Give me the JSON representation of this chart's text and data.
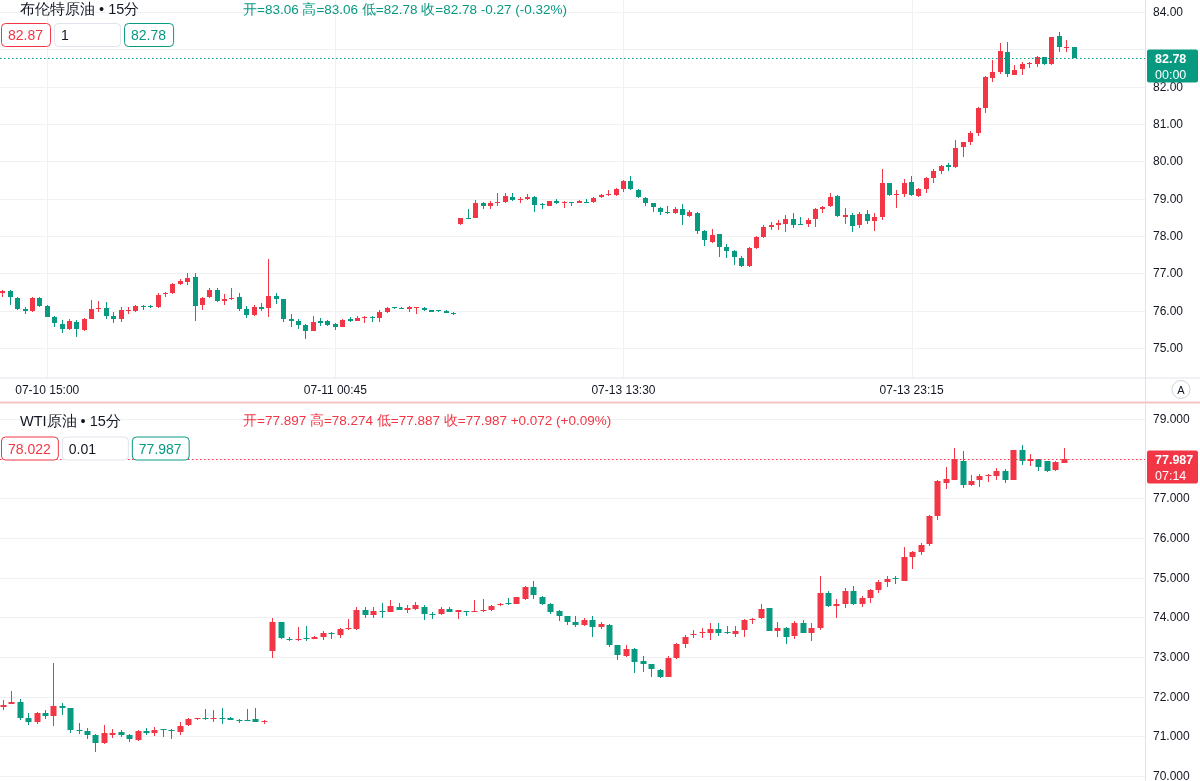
{
  "chart_data": [
    {
      "type": "candlestick",
      "title": "布伦特原油 • 15分",
      "subtitle": "开=83.06 高=83.06 低=82.78 收=82.78 -0.27 (-0.32%)",
      "categories": [
        null,
        null,
        null,
        null,
        null,
        null,
        "07-10 15:00",
        null,
        null,
        null,
        null,
        null,
        null,
        null,
        null,
        null,
        null,
        null,
        null,
        null,
        null,
        null,
        null,
        null,
        null,
        null,
        null,
        null,
        null,
        null,
        null,
        null,
        null,
        null,
        null,
        null,
        null,
        null,
        null,
        null,
        null,
        null,
        null,
        null,
        null,
        "07-11 00:45",
        null,
        null,
        null,
        null,
        null,
        null,
        null,
        null,
        null,
        null,
        null,
        null,
        null,
        null,
        null,
        null,
        null,
        null,
        null,
        null,
        null,
        null,
        null,
        null,
        null,
        null,
        null,
        null,
        null,
        null,
        null,
        null,
        null,
        null,
        null,
        null,
        null,
        null,
        "07-13 13:30",
        null,
        null,
        null,
        null,
        null,
        null,
        null,
        null,
        null,
        null,
        null,
        null,
        null,
        null,
        null,
        null,
        null,
        null,
        null,
        null,
        null,
        null,
        null,
        null,
        null,
        null,
        null,
        null,
        null,
        null,
        null,
        null,
        null,
        null,
        null,
        null,
        null,
        null,
        "07-13 23:15",
        null,
        null,
        null,
        null,
        null,
        null,
        null,
        null,
        null,
        null,
        null,
        null,
        null,
        null,
        null,
        null,
        null,
        null,
        null,
        null,
        null,
        null,
        null,
        null,
        null,
        null,
        null,
        null,
        null,
        null,
        null
      ],
      "ohlc": [
        [
          76.46,
          76.55,
          76.36,
          76.53
        ],
        [
          76.53,
          76.55,
          76.15,
          76.36
        ],
        [
          76.35,
          76.37,
          76.02,
          76.04
        ],
        [
          76.04,
          76.11,
          75.91,
          75.99
        ],
        [
          75.99,
          76.36,
          75.97,
          76.35
        ],
        [
          76.35,
          76.36,
          76.11,
          76.13
        ],
        [
          76.13,
          76.15,
          75.82,
          75.84
        ],
        [
          75.84,
          75.86,
          75.55,
          75.66
        ],
        [
          75.64,
          75.75,
          75.39,
          75.5
        ],
        [
          75.5,
          75.77,
          75.48,
          75.71
        ],
        [
          75.7,
          75.75,
          75.3,
          75.5
        ],
        [
          75.48,
          75.81,
          75.46,
          75.79
        ],
        [
          75.79,
          76.28,
          75.77,
          76.04
        ],
        [
          76.04,
          76.26,
          75.97,
          76.08
        ],
        [
          76.08,
          76.23,
          75.79,
          75.86
        ],
        [
          75.86,
          75.97,
          75.68,
          75.79
        ],
        [
          75.79,
          76.11,
          75.69,
          76.02
        ],
        [
          76.01,
          76.11,
          75.95,
          76.03
        ],
        [
          76,
          76.15,
          75.96,
          76.12
        ],
        [
          76.12,
          76.15,
          76.05,
          76.1
        ],
        [
          76.12,
          76.14,
          76.06,
          76.1
        ],
        [
          76.09,
          76.46,
          76.07,
          76.42
        ],
        [
          76.44,
          76.51,
          76.39,
          76.48
        ],
        [
          76.46,
          76.75,
          76.44,
          76.71
        ],
        [
          76.71,
          76.84,
          76.7,
          76.79
        ],
        [
          76.78,
          77,
          76.73,
          76.88
        ],
        [
          76.89,
          77.02,
          75.73,
          76.12
        ],
        [
          76.14,
          76.37,
          76.03,
          76.35
        ],
        [
          76.36,
          76.6,
          76.33,
          76.55
        ],
        [
          76.55,
          76.6,
          76.24,
          76.27
        ],
        [
          76.27,
          76.44,
          76.14,
          76.3
        ],
        [
          76.3,
          76.6,
          76.28,
          76.35
        ],
        [
          76.37,
          76.46,
          76,
          76.04
        ],
        [
          76.04,
          76.13,
          75.82,
          75.88
        ],
        [
          75.88,
          76.15,
          75.86,
          76.11
        ],
        [
          76.11,
          76.2,
          76,
          76.04
        ],
        [
          76.06,
          77.38,
          75.82,
          76.39
        ],
        [
          76.39,
          76.46,
          76.18,
          76.32
        ],
        [
          76.3,
          76.32,
          75.71,
          75.78
        ],
        [
          75.78,
          75.91,
          75.55,
          75.73
        ],
        [
          75.72,
          75.79,
          75.5,
          75.62
        ],
        [
          75.62,
          75.64,
          75.24,
          75.46
        ],
        [
          75.46,
          75.86,
          75.45,
          75.7
        ],
        [
          75.71,
          75.8,
          75.62,
          75.68
        ],
        [
          75.71,
          75.75,
          75.59,
          75.62
        ],
        [
          75.63,
          75.66,
          75.48,
          75.55
        ],
        [
          75.57,
          75.78,
          75.55,
          75.75
        ],
        [
          75.77,
          75.84,
          75.7,
          75.73
        ],
        [
          75.73,
          75.86,
          75.71,
          75.81
        ],
        [
          75.8,
          75.86,
          75.68,
          75.84
        ],
        [
          75.84,
          75.87,
          75.7,
          75.8
        ],
        [
          75.81,
          76.02,
          75.7,
          75.97
        ],
        [
          75.97,
          76.11,
          75.95,
          76.08
        ],
        [
          76.09,
          76.11,
          76.05,
          76.06
        ],
        [
          76.08,
          76.1,
          76.04,
          76.05
        ],
        [
          76.05,
          76.12,
          75.99,
          76.09
        ],
        [
          76.06,
          76.11,
          75.91,
          76.09
        ],
        [
          76.08,
          76.11,
          76,
          76.02
        ],
        [
          76.01,
          76.01,
          75.96,
          75.97
        ],
        [
          76.01,
          76.02,
          75.96,
          75.98
        ],
        [
          75.99,
          76.03,
          75.93,
          75.95
        ],
        [
          75.93,
          75.96,
          75.89,
          75.9
        ],
        [
          78.32,
          78.49,
          78.3,
          78.47
        ],
        [
          78.49,
          78.71,
          78.47,
          78.47
        ],
        [
          78.49,
          78.96,
          78.47,
          78.88
        ],
        [
          78.88,
          78.92,
          78.74,
          78.79
        ],
        [
          78.79,
          78.95,
          78.72,
          78.88
        ],
        [
          78.88,
          79.14,
          78.79,
          78.91
        ],
        [
          78.9,
          79.16,
          78.88,
          79.07
        ],
        [
          79.05,
          79.14,
          78.95,
          78.96
        ],
        [
          78.96,
          79.05,
          78.88,
          78.98
        ],
        [
          78.98,
          79.12,
          78.96,
          79.05
        ],
        [
          79.05,
          79.07,
          78.65,
          78.83
        ],
        [
          78.85,
          78.89,
          78.71,
          78.83
        ],
        [
          78.81,
          78.95,
          78.79,
          78.94
        ],
        [
          78.94,
          78.99,
          78.85,
          78.88
        ],
        [
          78.88,
          78.94,
          78.74,
          78.92
        ],
        [
          78.92,
          78.92,
          78.8,
          78.9
        ],
        [
          78.89,
          78.96,
          78.88,
          78.93
        ],
        [
          78.92,
          78.98,
          78.88,
          78.89
        ],
        [
          78.92,
          79.05,
          78.89,
          79.03
        ],
        [
          79.05,
          79.12,
          79.03,
          79.1
        ],
        [
          79.1,
          79.23,
          79.07,
          79.13
        ],
        [
          79.1,
          79.28,
          79.08,
          79.26
        ],
        [
          79.25,
          79.5,
          79.19,
          79.48
        ],
        [
          79.48,
          79.61,
          79.23,
          79.26
        ],
        [
          79.23,
          79.25,
          79.01,
          79.04
        ],
        [
          79.03,
          79.04,
          78.83,
          78.88
        ],
        [
          78.88,
          78.89,
          78.65,
          78.77
        ],
        [
          78.76,
          78.77,
          78.56,
          78.64
        ],
        [
          78.64,
          78.79,
          78.59,
          78.61
        ],
        [
          78.61,
          78.77,
          78.59,
          78.72
        ],
        [
          78.71,
          78.85,
          78.3,
          78.55
        ],
        [
          78.54,
          78.7,
          78.52,
          78.65
        ],
        [
          78.61,
          78.63,
          78.09,
          78.14
        ],
        [
          78.14,
          78.16,
          77.74,
          77.88
        ],
        [
          77.85,
          78.18,
          77.82,
          78.03
        ],
        [
          78.05,
          78.05,
          77.43,
          77.71
        ],
        [
          77.71,
          77.79,
          77.4,
          77.61
        ],
        [
          77.61,
          77.63,
          77.22,
          77.43
        ],
        [
          77.42,
          77.46,
          77.18,
          77.2
        ],
        [
          77.2,
          77.71,
          77.18,
          77.67
        ],
        [
          77.67,
          78.01,
          77.64,
          77.98
        ],
        [
          77.98,
          78.3,
          77.94,
          78.25
        ],
        [
          78.25,
          78.37,
          78.18,
          78.3
        ],
        [
          78.29,
          78.43,
          78.16,
          78.34
        ],
        [
          78.32,
          78.55,
          78.12,
          78.45
        ],
        [
          78.45,
          78.61,
          78.25,
          78.3
        ],
        [
          78.32,
          78.5,
          78.29,
          78.3
        ],
        [
          78.32,
          78.47,
          78.25,
          78.43
        ],
        [
          78.46,
          78.74,
          78.23,
          78.72
        ],
        [
          78.72,
          78.79,
          78.61,
          78.77
        ],
        [
          78.79,
          79.16,
          78.77,
          79.05
        ],
        [
          79.08,
          79.1,
          78.52,
          78.54
        ],
        [
          78.52,
          78.74,
          78.32,
          78.56
        ],
        [
          78.56,
          78.61,
          78.12,
          78.27
        ],
        [
          78.3,
          78.63,
          78.23,
          78.59
        ],
        [
          78.59,
          78.7,
          78.34,
          78.39
        ],
        [
          78.39,
          78.61,
          78.14,
          78.52
        ],
        [
          78.52,
          79.8,
          78.45,
          79.41
        ],
        [
          79.41,
          79.43,
          79.07,
          79.1
        ],
        [
          79.09,
          79.23,
          78.74,
          79.13
        ],
        [
          79.13,
          79.52,
          79.04,
          79.43
        ],
        [
          79.44,
          79.61,
          79.08,
          79.1
        ],
        [
          79.08,
          79.29,
          79.04,
          79.26
        ],
        [
          79.27,
          79.59,
          79.16,
          79.55
        ],
        [
          79.56,
          79.79,
          79.43,
          79.73
        ],
        [
          79.75,
          79.91,
          79.68,
          79.88
        ],
        [
          79.89,
          79.95,
          79.75,
          79.86
        ],
        [
          79.86,
          80.57,
          79.83,
          80.35
        ],
        [
          80.37,
          80.53,
          80.11,
          80.51
        ],
        [
          80.53,
          80.8,
          80.44,
          80.75
        ],
        [
          80.77,
          81.45,
          80.72,
          81.44
        ],
        [
          81.44,
          82.29,
          81.29,
          82.27
        ],
        [
          82.22,
          82.71,
          82.13,
          82.38
        ],
        [
          82.38,
          83.18,
          82.34,
          82.96
        ],
        [
          82.94,
          83.19,
          82.27,
          82.33
        ],
        [
          82.31,
          82.58,
          82.3,
          82.45
        ],
        [
          82.47,
          82.66,
          82.3,
          82.61
        ],
        [
          82.6,
          82.66,
          82.49,
          82.64
        ],
        [
          82.6,
          82.82,
          82.54,
          82.79
        ],
        [
          82.79,
          82.8,
          82.57,
          82.61
        ],
        [
          82.61,
          83.34,
          82.58,
          83.32
        ],
        [
          83.36,
          83.47,
          82.94,
          83.05
        ],
        [
          83.03,
          83.25,
          82.93,
          83.05
        ],
        [
          83.06,
          83.06,
          82.78,
          82.78
        ],
        null,
        null,
        null,
        null,
        null,
        null,
        null,
        null,
        null
      ],
      "colors": [
        "#f23645",
        "#089981",
        "#089981",
        "#089981",
        "#f23645",
        "#089981",
        "#089981",
        "#089981",
        "#089981",
        "#f23645",
        "#089981",
        "#f23645",
        "#f23645",
        "#f23645",
        "#089981",
        "#089981",
        "#f23645",
        "#f23645",
        "#f23645",
        "#089981",
        "#089981",
        "#f23645",
        "#f23645",
        "#f23645",
        "#f23645",
        "#f23645",
        "#089981",
        "#f23645",
        "#f23645",
        "#089981",
        "#f23645",
        "#f23645",
        "#089981",
        "#089981",
        "#f23645",
        "#089981",
        "#f23645",
        "#089981",
        "#089981",
        "#089981",
        "#089981",
        "#089981",
        "#f23645",
        "#089981",
        "#089981",
        "#089981",
        "#f23645",
        "#089981",
        "#f23645",
        "#f23645",
        "#089981",
        "#f23645",
        "#f23645",
        "#089981",
        "#089981",
        "#f23645",
        "#f23645",
        "#089981",
        "#089981",
        "#089981",
        "#089981",
        "#089981",
        "#f23645",
        "#089981",
        "#f23645",
        "#089981",
        "#f23645",
        "#f23645",
        "#f23645",
        "#089981",
        "#f23645",
        "#f23645",
        "#089981",
        "#089981",
        "#f23645",
        "#089981",
        "#f23645",
        "#089981",
        "#f23645",
        "#089981",
        "#f23645",
        "#f23645",
        "#f23645",
        "#f23645",
        "#f23645",
        "#089981",
        "#089981",
        "#089981",
        "#089981",
        "#089981",
        "#089981",
        "#f23645",
        "#089981",
        "#f23645",
        "#089981",
        "#089981",
        "#f23645",
        "#089981",
        "#089981",
        "#089981",
        "#089981",
        "#f23645",
        "#f23645",
        "#f23645",
        "#f23645",
        "#f23645",
        "#f23645",
        "#089981",
        "#089981",
        "#f23645",
        "#f23645",
        "#f23645",
        "#f23645",
        "#089981",
        "#f23645",
        "#089981",
        "#f23645",
        "#089981",
        "#f23645",
        "#f23645",
        "#089981",
        "#f23645",
        "#f23645",
        "#089981",
        "#f23645",
        "#f23645",
        "#f23645",
        "#f23645",
        "#089981",
        "#f23645",
        "#f23645",
        "#f23645",
        "#f23645",
        "#f23645",
        "#f23645",
        "#f23645",
        "#089981",
        "#f23645",
        "#f23645",
        "#f23645",
        "#f23645",
        "#089981",
        "#f23645",
        "#089981",
        "#f23645",
        "#089981",
        null,
        null,
        null,
        null,
        null,
        null,
        null,
        null,
        null
      ],
      "ylim": [
        74.21,
        84.32
      ],
      "yticks": [
        {
          "value": 75,
          "label": "75.00"
        },
        {
          "value": 76,
          "label": "76.00"
        },
        {
          "value": 77,
          "label": "77.00"
        },
        {
          "value": 78,
          "label": "78.00"
        },
        {
          "value": 79,
          "label": "79.00"
        },
        {
          "value": 80,
          "label": "80.00"
        },
        {
          "value": 81,
          "label": "81.00"
        },
        {
          "value": 82,
          "label": "82.00"
        },
        {
          "value": 83,
          "label": null
        },
        {
          "value": 84,
          "label": "84.00"
        }
      ],
      "ref_lines": [
        {
          "axis": "y",
          "value": 82.78,
          "label": "82.78",
          "color": "#089981",
          "line_style": "dotted"
        }
      ],
      "annotations": [
        "82.87",
        "1",
        "82.78",
        "00:00",
        "A"
      ],
      "grid": true
    },
    {
      "type": "candlestick",
      "title": "WTI原油 • 15分",
      "subtitle": "开=77.897 高=78.274 低=77.887 收=77.987 +0.072 (+0.09%)",
      "categories": [
        null,
        null,
        null,
        null,
        null,
        null,
        null,
        null,
        null,
        null,
        null,
        null,
        null,
        null,
        null,
        null,
        null,
        null,
        null,
        null,
        null,
        null,
        null,
        null,
        null,
        null,
        null,
        null,
        null,
        null,
        null,
        null,
        null,
        null,
        null,
        null,
        null,
        null,
        null,
        null,
        null,
        null,
        null,
        null,
        null,
        null,
        null,
        null,
        null,
        null,
        null,
        null,
        null,
        null,
        null,
        null,
        null,
        null,
        null,
        null,
        null,
        null,
        null,
        null,
        null,
        null,
        null,
        null,
        null,
        null,
        null,
        null,
        null,
        null,
        null,
        null,
        null,
        null,
        null,
        null,
        null,
        null,
        null,
        null,
        null,
        null,
        null,
        null,
        null,
        null,
        null,
        null,
        null,
        null,
        null,
        null,
        null,
        null,
        null,
        null,
        null,
        null,
        null,
        null,
        null,
        null,
        null,
        null,
        null,
        null,
        null,
        null,
        null,
        null,
        null,
        null,
        null,
        null,
        null,
        null,
        null,
        null,
        null,
        null,
        null,
        null,
        null,
        null,
        null,
        null,
        null,
        null,
        null,
        null,
        null,
        null
      ],
      "ohlc": [
        [
          71.73,
          71.92,
          71.66,
          71.79
        ],
        [
          71.82,
          72.13,
          71.81,
          71.86
        ],
        [
          71.86,
          71.93,
          71.41,
          71.45
        ],
        [
          71.45,
          71.58,
          71.29,
          71.37
        ],
        [
          71.37,
          71.6,
          71.33,
          71.58
        ],
        [
          71.58,
          71.65,
          71.45,
          71.5
        ],
        [
          71.51,
          72.84,
          71.26,
          71.77
        ],
        [
          71.77,
          71.83,
          71.54,
          71.72
        ],
        [
          71.7,
          71.72,
          71.08,
          71.16
        ],
        [
          71.16,
          71.33,
          71.08,
          71.14
        ],
        [
          71.12,
          71.2,
          70.92,
          71.03
        ],
        [
          71.02,
          71.05,
          70.61,
          70.82
        ],
        [
          70.82,
          71.29,
          70.81,
          71.08
        ],
        [
          71.04,
          71.18,
          70.98,
          71.08
        ],
        [
          71.1,
          71.16,
          70.99,
          71.02
        ],
        [
          71.03,
          71.05,
          70.85,
          70.93
        ],
        [
          70.91,
          71.16,
          70.88,
          71.14
        ],
        [
          71.14,
          71.2,
          71.05,
          71.09
        ],
        [
          71.09,
          71.23,
          71.02,
          71.16
        ],
        [
          71.17,
          71.18,
          70.98,
          71.15
        ],
        [
          71.16,
          71.18,
          70.94,
          71.14
        ],
        [
          71.11,
          71.37,
          71.06,
          71.26
        ],
        [
          71.27,
          71.45,
          71.25,
          71.44
        ],
        [
          71.43,
          71.46,
          71.41,
          71.45
        ],
        [
          71.45,
          71.69,
          71.41,
          71.43
        ],
        [
          71.43,
          71.65,
          71.36,
          71.47
        ],
        [
          71.46,
          71.71,
          71.3,
          71.44
        ],
        [
          71.46,
          71.48,
          71.4,
          71.41
        ],
        [
          71.41,
          71.43,
          71.35,
          71.39
        ],
        [
          71.41,
          71.69,
          71.38,
          71.39
        ],
        [
          71.43,
          71.72,
          71.35,
          71.36
        ],
        [
          71.35,
          71.41,
          71.31,
          71.38
        ],
        [
          73.15,
          73.99,
          72.98,
          73.87
        ],
        [
          73.87,
          73.89,
          73.45,
          73.47
        ],
        [
          73.46,
          73.51,
          73.39,
          73.42
        ],
        [
          73.42,
          73.75,
          73.4,
          73.45
        ],
        [
          73.47,
          73.77,
          73.41,
          73.45
        ],
        [
          73.46,
          73.53,
          73.45,
          73.51
        ],
        [
          73.5,
          73.64,
          73.45,
          73.6
        ],
        [
          73.6,
          73.62,
          73.45,
          73.57
        ],
        [
          73.54,
          73.72,
          73.49,
          73.71
        ],
        [
          73.7,
          73.95,
          73.68,
          73.72
        ],
        [
          73.71,
          74.25,
          73.68,
          74.19
        ],
        [
          74.17,
          74.25,
          73.99,
          74.06
        ],
        [
          74.06,
          74.25,
          73.99,
          74.16
        ],
        [
          74.16,
          74.35,
          73.99,
          74.12
        ],
        [
          74.14,
          74.44,
          74.13,
          74.29
        ],
        [
          74.27,
          74.35,
          74.17,
          74.19
        ],
        [
          74.19,
          74.3,
          74.1,
          74.23
        ],
        [
          74.21,
          74.38,
          74.19,
          74.3
        ],
        [
          74.25,
          74.31,
          73.93,
          74.08
        ],
        [
          74.08,
          74.14,
          73.96,
          74.06
        ],
        [
          74.08,
          74.25,
          74.06,
          74.21
        ],
        [
          74.2,
          74.25,
          74.13,
          74.14
        ],
        [
          74.14,
          74.19,
          73.96,
          74.17
        ],
        [
          74.16,
          74.16,
          74.02,
          74.14
        ],
        [
          74.13,
          74.44,
          74.13,
          74.16
        ],
        [
          74.16,
          74.46,
          74.14,
          74.19
        ],
        [
          74.18,
          74.31,
          74.16,
          74.29
        ],
        [
          74.31,
          74.36,
          74.29,
          74.34
        ],
        [
          74.35,
          74.48,
          74.31,
          74.33
        ],
        [
          74.34,
          74.52,
          74.33,
          74.5
        ],
        [
          74.46,
          74.79,
          74.44,
          74.77
        ],
        [
          74.77,
          74.92,
          74.45,
          74.55
        ],
        [
          74.52,
          74.54,
          74.31,
          74.34
        ],
        [
          74.33,
          74.35,
          74.1,
          74.14
        ],
        [
          74.16,
          74.19,
          73.91,
          74.02
        ],
        [
          74.02,
          74.04,
          73.81,
          73.89
        ],
        [
          73.89,
          74.02,
          73.77,
          73.81
        ],
        [
          73.81,
          73.96,
          73.79,
          73.92
        ],
        [
          73.92,
          74.04,
          73.51,
          73.75
        ],
        [
          73.75,
          73.89,
          73.71,
          73.82
        ],
        [
          73.81,
          73.82,
          73.26,
          73.29
        ],
        [
          73.29,
          73.3,
          72.92,
          73.05
        ],
        [
          73.03,
          73.29,
          73,
          73.2
        ],
        [
          73.2,
          73.22,
          72.59,
          72.88
        ],
        [
          72.9,
          73.01,
          72.63,
          72.82
        ],
        [
          72.82,
          72.83,
          72.5,
          72.7
        ],
        [
          72.67,
          72.7,
          72.48,
          72.5
        ],
        [
          72.5,
          73.01,
          72.49,
          72.97
        ],
        [
          72.97,
          73.34,
          72.95,
          73.32
        ],
        [
          73.33,
          73.54,
          73.22,
          73.51
        ],
        [
          73.56,
          73.68,
          73.47,
          73.57
        ],
        [
          73.59,
          73.72,
          73.47,
          73.64
        ],
        [
          73.61,
          73.85,
          73.43,
          73.7
        ],
        [
          73.7,
          73.86,
          73.56,
          73.61
        ],
        [
          73.62,
          73.78,
          73.58,
          73.59
        ],
        [
          73.58,
          73.78,
          73.51,
          73.66
        ],
        [
          73.68,
          73.96,
          73.51,
          73.93
        ],
        [
          73.92,
          73.97,
          73.83,
          73.96
        ],
        [
          73.97,
          74.33,
          73.96,
          74.21
        ],
        [
          74.23,
          74.23,
          73.66,
          73.66
        ],
        [
          73.65,
          73.89,
          73.5,
          73.73
        ],
        [
          73.72,
          73.75,
          73.33,
          73.51
        ],
        [
          73.53,
          73.89,
          73.45,
          73.85
        ],
        [
          73.85,
          73.93,
          73.6,
          73.61
        ],
        [
          73.61,
          73.85,
          73.39,
          73.74
        ],
        [
          73.74,
          75.03,
          73.7,
          74.62
        ],
        [
          74.62,
          74.65,
          74.27,
          74.29
        ],
        [
          74.29,
          74.45,
          73.97,
          74.33
        ],
        [
          74.33,
          74.73,
          74.24,
          74.65
        ],
        [
          74.65,
          74.79,
          74.31,
          74.34
        ],
        [
          74.34,
          74.52,
          74.29,
          74.48
        ],
        [
          74.48,
          74.71,
          74.35,
          74.69
        ],
        [
          74.69,
          74.92,
          74.62,
          74.88
        ],
        [
          74.9,
          75.03,
          74.77,
          74.96
        ],
        [
          75,
          75.04,
          74.83,
          74.97
        ],
        [
          74.92,
          75.76,
          74.91,
          75.51
        ],
        [
          75.53,
          75.66,
          75.21,
          75.64
        ],
        [
          75.64,
          75.87,
          75.56,
          75.82
        ],
        [
          75.84,
          76.57,
          75.8,
          76.56
        ],
        [
          76.56,
          77.46,
          76.44,
          77.44
        ],
        [
          77.38,
          77.8,
          77.23,
          77.48
        ],
        [
          77.46,
          78.28,
          77.45,
          77.98
        ],
        [
          77.94,
          78.19,
          77.29,
          77.34
        ],
        [
          77.34,
          77.59,
          77.32,
          77.44
        ],
        [
          77.46,
          77.61,
          77.28,
          77.55
        ],
        [
          77.55,
          77.61,
          77.42,
          77.58
        ],
        [
          77.56,
          77.76,
          77.46,
          77.7
        ],
        [
          77.7,
          77.73,
          77.4,
          77.45
        ],
        [
          77.45,
          78.22,
          77.45,
          78.22
        ],
        [
          78.22,
          78.35,
          77.84,
          77.95
        ],
        [
          77.95,
          78.12,
          77.82,
          77.98
        ],
        [
          77.98,
          77.98,
          77.7,
          77.8
        ],
        [
          77.95,
          77.95,
          77.67,
          77.7
        ],
        [
          77.71,
          77.93,
          77.69,
          77.92
        ],
        [
          77.897,
          78.274,
          77.887,
          77.987
        ],
        null,
        null,
        null,
        null,
        null,
        null,
        null,
        null,
        null
      ],
      "colors": [
        "#f23645",
        "#f23645",
        "#089981",
        "#089981",
        "#f23645",
        "#089981",
        "#f23645",
        "#089981",
        "#089981",
        "#089981",
        "#089981",
        "#089981",
        "#f23645",
        "#f23645",
        "#089981",
        "#089981",
        "#f23645",
        "#089981",
        "#f23645",
        "#089981",
        "#089981",
        "#f23645",
        "#f23645",
        "#f23645",
        "#089981",
        "#f23645",
        "#089981",
        "#089981",
        "#089981",
        "#089981",
        "#089981",
        "#f23645",
        "#f23645",
        "#089981",
        "#089981",
        "#f23645",
        "#089981",
        "#f23645",
        "#f23645",
        "#089981",
        "#f23645",
        "#f23645",
        "#f23645",
        "#089981",
        "#f23645",
        "#089981",
        "#f23645",
        "#089981",
        "#f23645",
        "#f23645",
        "#089981",
        "#089981",
        "#f23645",
        "#089981",
        "#f23645",
        "#089981",
        "#f23645",
        "#f23645",
        "#f23645",
        "#f23645",
        "#089981",
        "#f23645",
        "#f23645",
        "#089981",
        "#089981",
        "#089981",
        "#089981",
        "#089981",
        "#089981",
        "#f23645",
        "#089981",
        "#f23645",
        "#089981",
        "#089981",
        "#f23645",
        "#089981",
        "#089981",
        "#089981",
        "#089981",
        "#f23645",
        "#f23645",
        "#f23645",
        "#f23645",
        "#f23645",
        "#f23645",
        "#089981",
        "#089981",
        "#f23645",
        "#f23645",
        "#f23645",
        "#f23645",
        "#089981",
        "#f23645",
        "#089981",
        "#f23645",
        "#089981",
        "#f23645",
        "#f23645",
        "#089981",
        "#f23645",
        "#f23645",
        "#089981",
        "#f23645",
        "#f23645",
        "#f23645",
        "#f23645",
        "#089981",
        "#f23645",
        "#f23645",
        "#f23645",
        "#f23645",
        "#f23645",
        "#f23645",
        "#f23645",
        "#089981",
        "#f23645",
        "#f23645",
        "#f23645",
        "#f23645",
        "#089981",
        "#f23645",
        "#089981",
        "#f23645",
        "#089981",
        "#089981",
        "#f23645",
        "#f23645",
        null,
        null,
        null,
        null,
        null,
        null,
        null,
        null,
        null
      ],
      "ylim": [
        69.87,
        79.39
      ],
      "yticks": [
        {
          "value": 70,
          "label": "70.000"
        },
        {
          "value": 71,
          "label": "71.000"
        },
        {
          "value": 72,
          "label": "72.000"
        },
        {
          "value": 73,
          "label": "73.000"
        },
        {
          "value": 74,
          "label": "74.000"
        },
        {
          "value": 75,
          "label": "75.000"
        },
        {
          "value": 76,
          "label": "76.000"
        },
        {
          "value": 77,
          "label": "77.000"
        },
        {
          "value": 78,
          "label": null
        },
        {
          "value": 79,
          "label": "79.000"
        }
      ],
      "ref_lines": [
        {
          "axis": "y",
          "value": 77.987,
          "label": "77.987",
          "color": "#f23645",
          "line_style": "dotted"
        }
      ],
      "annotations": [
        "78.022",
        "0.01",
        "77.987",
        "07:14"
      ],
      "tick_labels": "y",
      "grid": "y"
    }
  ]
}
